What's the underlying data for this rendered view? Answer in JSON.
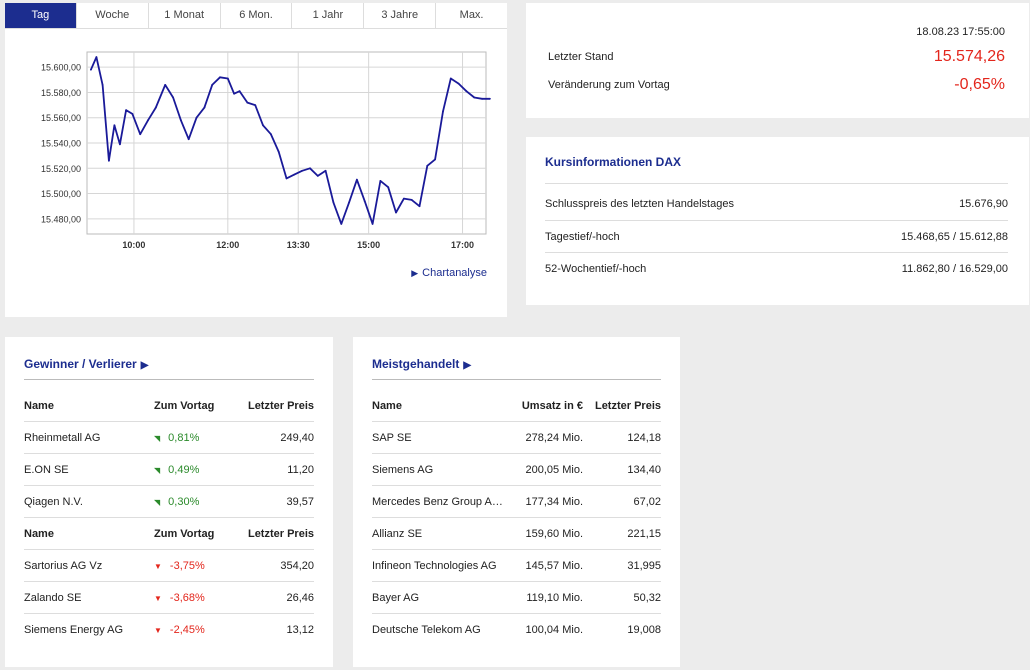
{
  "chart_tabs": [
    {
      "label": "Tag",
      "active": true
    },
    {
      "label": "Woche",
      "active": false
    },
    {
      "label": "1 Monat",
      "active": false
    },
    {
      "label": "6 Mon.",
      "active": false
    },
    {
      "label": "1 Jahr",
      "active": false
    },
    {
      "label": "3 Jahre",
      "active": false
    },
    {
      "label": "Max.",
      "active": false
    }
  ],
  "chart_link": "Chartanalyse",
  "chart_data": {
    "type": "line",
    "x_range": [
      "09:00",
      "17:30"
    ],
    "xtick_labels": [
      "10:00",
      "12:00",
      "13:30",
      "15:00",
      "17:00"
    ],
    "xtick_positions": [
      "10:00",
      "12:00",
      "13:30",
      "15:00",
      "17:00"
    ],
    "ytick_labels": [
      "15.480,00",
      "15.500,00",
      "15.520,00",
      "15.540,00",
      "15.560,00",
      "15.580,00",
      "15.600,00"
    ],
    "ytick_values": [
      15480,
      15500,
      15520,
      15540,
      15560,
      15580,
      15600
    ],
    "ylim": [
      15468,
      15612
    ],
    "grid": true,
    "color": "#1a1a99",
    "series": [
      {
        "x": [
          "09:05",
          "09:12",
          "09:20",
          "09:28",
          "09:35",
          "09:42",
          "09:50",
          "09:58",
          "10:08",
          "10:18",
          "10:28",
          "10:40",
          "10:50",
          "11:00",
          "11:10",
          "11:20",
          "11:30",
          "11:40",
          "11:50",
          "12:00",
          "12:08",
          "12:15",
          "12:25",
          "12:35",
          "12:45",
          "12:55",
          "13:05",
          "13:15",
          "13:25",
          "13:35",
          "13:45",
          "13:55",
          "14:05",
          "14:15",
          "14:25",
          "14:35",
          "14:45",
          "14:55",
          "15:05",
          "15:15",
          "15:25",
          "15:35",
          "15:45",
          "15:55",
          "16:05",
          "16:15",
          "16:25",
          "16:35",
          "16:45",
          "16:55",
          "17:05",
          "17:15",
          "17:25",
          "17:35"
        ],
        "y": [
          15598,
          15608,
          15586,
          15526,
          15554,
          15539,
          15566,
          15563,
          15547,
          15558,
          15568,
          15586,
          15576,
          15558,
          15543,
          15560,
          15568,
          15586,
          15592,
          15591,
          15579,
          15581,
          15572,
          15570,
          15554,
          15547,
          15533,
          15512,
          15515,
          15518,
          15520,
          15514,
          15518,
          15493,
          15476,
          15493,
          15511,
          15494,
          15476,
          15510,
          15505,
          15485,
          15496,
          15495,
          15490,
          15522,
          15527,
          15565,
          15591,
          15587,
          15581,
          15576,
          15575,
          15575
        ]
      }
    ]
  },
  "stand": {
    "datetime": "18.08.23 17:55:00",
    "letzter_label": "Letzter Stand",
    "letzter_value": "15.574,26",
    "veraenderung_label": "Veränderung zum Vortag",
    "veraenderung_value": "-0,65%"
  },
  "kursinfo": {
    "title": "Kursinformationen DAX",
    "rows": [
      {
        "label": "Schlusspreis des letzten Handelstages",
        "value": "15.676,90"
      },
      {
        "label": "Tagestief/-hoch",
        "value": "15.468,65 / 15.612,88"
      },
      {
        "label": "52-Wochentief/-hoch",
        "value": "11.862,80 / 16.529,00"
      }
    ]
  },
  "gewinner": {
    "title": "Gewinner / Verlierer",
    "header": {
      "name": "Name",
      "change": "Zum Vortag",
      "price": "Letzter Preis"
    },
    "winners": [
      {
        "name": "Rheinmetall AG",
        "change": "0,81%",
        "price": "249,40"
      },
      {
        "name": "E.ON SE",
        "change": "0,49%",
        "price": "11,20"
      },
      {
        "name": "Qiagen N.V.",
        "change": "0,30%",
        "price": "39,57"
      }
    ],
    "losers": [
      {
        "name": "Sartorius AG Vz",
        "change": "-3,75%",
        "price": "354,20"
      },
      {
        "name": "Zalando SE",
        "change": "-3,68%",
        "price": "26,46"
      },
      {
        "name": "Siemens Energy AG",
        "change": "-2,45%",
        "price": "13,12"
      }
    ],
    "up_color": "#2b8a2b",
    "down_color": "#e3261c"
  },
  "meistgehandelt": {
    "title": "Meistgehandelt",
    "header": {
      "name": "Name",
      "volume": "Umsatz in €",
      "price": "Letzter Preis"
    },
    "rows": [
      {
        "name": "SAP SE",
        "volume": "278,24 Mio.",
        "price": "124,18"
      },
      {
        "name": "Siemens AG",
        "volume": "200,05 Mio.",
        "price": "134,40"
      },
      {
        "name": "Mercedes Benz Group AG ...",
        "volume": "177,34 Mio.",
        "price": "67,02"
      },
      {
        "name": "Allianz SE",
        "volume": "159,60 Mio.",
        "price": "221,15"
      },
      {
        "name": "Infineon Technologies AG",
        "volume": "145,57 Mio.",
        "price": "31,995"
      },
      {
        "name": "Bayer AG",
        "volume": "119,10 Mio.",
        "price": "50,32"
      },
      {
        "name": "Deutsche Telekom AG",
        "volume": "100,04 Mio.",
        "price": "19,008"
      }
    ]
  },
  "colors": {
    "brand": "#1c2d8f",
    "negative": "#e3261c",
    "positive": "#2b8a2b"
  }
}
